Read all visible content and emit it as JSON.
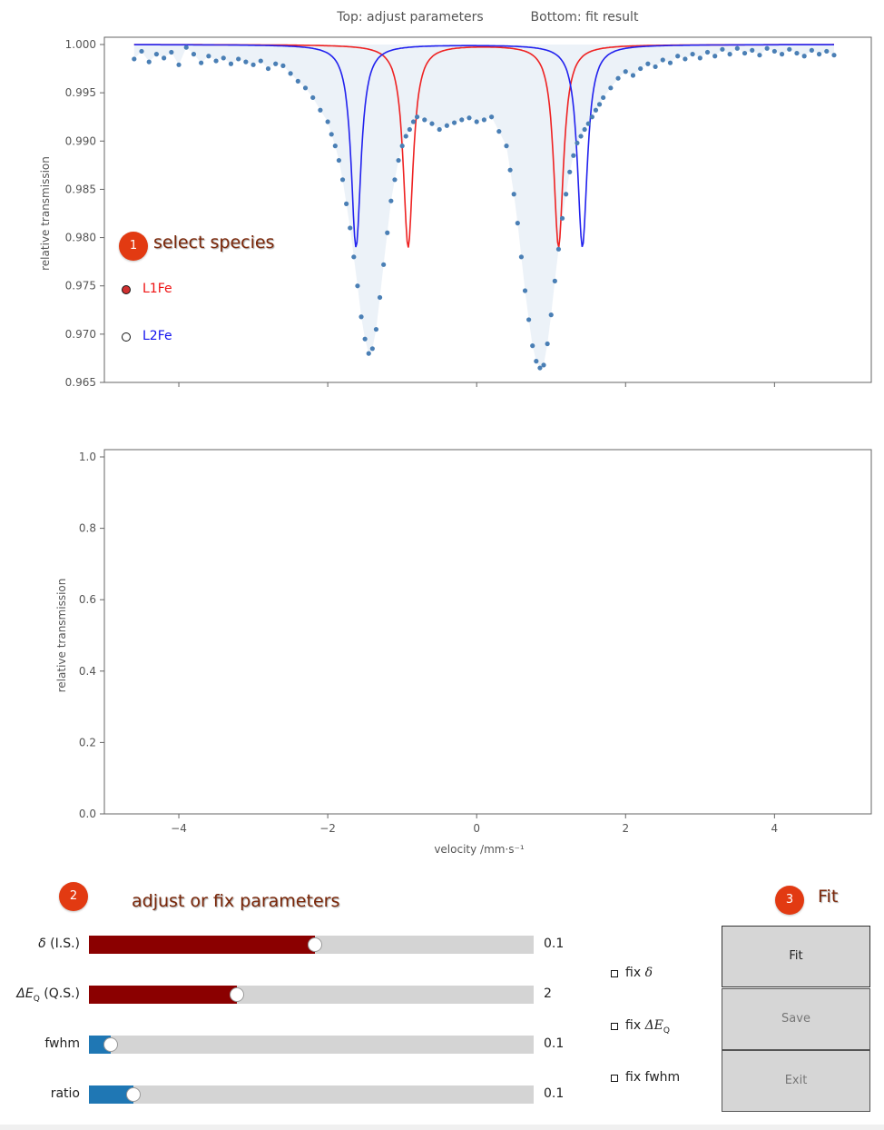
{
  "figure": {
    "top_caption": "Top: adjust parameters",
    "bottom_caption": "Bottom: fit result"
  },
  "steps": [
    {
      "number": "1",
      "title": "select species"
    },
    {
      "number": "2",
      "title": "adjust or fix parameters"
    },
    {
      "number": "3",
      "title": "Fit"
    }
  ],
  "species": [
    {
      "label": "L1Fe",
      "color": "#ee1111",
      "selected": true
    },
    {
      "label": "L2Fe",
      "color": "#1111ee",
      "selected": false
    }
  ],
  "parameters": [
    {
      "label_sym": "δ",
      "label_rest": " (I.S.)",
      "value_text": "0.1",
      "fill_fraction": 0.508,
      "fill_color": "#8b0000"
    },
    {
      "label_sym": "ΔE",
      "label_sub": "Q",
      "label_rest": " (Q.S.)",
      "value_text": "2",
      "fill_fraction": 0.333,
      "fill_color": "#8b0000"
    },
    {
      "label_sym": "",
      "label_rest": "fwhm",
      "value_text": "0.1",
      "fill_fraction": 0.049,
      "fill_color": "#1f77b4"
    },
    {
      "label_sym": "",
      "label_rest": "ratio",
      "value_text": "0.1",
      "fill_fraction": 0.1,
      "fill_color": "#1f77b4"
    }
  ],
  "fix_options": [
    {
      "prefix": "fix ",
      "sym": "δ",
      "sub": ""
    },
    {
      "prefix": "fix ",
      "sym": "ΔE",
      "sub": "Q"
    },
    {
      "prefix": "fix fwhm",
      "sym": "",
      "sub": ""
    }
  ],
  "buttons": {
    "fit": "Fit",
    "save": "Save",
    "exit": "Exit"
  },
  "chart_data": [
    {
      "type": "scatter",
      "title": "",
      "xlabel": "",
      "ylabel": "relative transmission",
      "xlim": [
        -5.0,
        5.3
      ],
      "ylim": [
        0.965,
        1.0
      ],
      "yticks": [
        "0.965",
        "0.970",
        "0.975",
        "0.980",
        "0.985",
        "0.990",
        "0.995",
        "1.000"
      ],
      "series": [
        {
          "name": "",
          "role": "measured",
          "color": "#4a7fb5",
          "x": [
            -4.6,
            -4.5,
            -4.4,
            -4.3,
            -4.2,
            -4.1,
            -4.0,
            -3.9,
            -3.8,
            -3.7,
            -3.6,
            -3.5,
            -3.4,
            -3.3,
            -3.2,
            -3.1,
            -3.0,
            -2.9,
            -2.8,
            -2.7,
            -2.6,
            -2.5,
            -2.4,
            -2.3,
            -2.2,
            -2.1,
            -2.0,
            -1.95,
            -1.9,
            -1.85,
            -1.8,
            -1.75,
            -1.7,
            -1.65,
            -1.6,
            -1.55,
            -1.5,
            -1.45,
            -1.4,
            -1.35,
            -1.3,
            -1.25,
            -1.2,
            -1.15,
            -1.1,
            -1.05,
            -1.0,
            -0.95,
            -0.9,
            -0.85,
            -0.8,
            -0.7,
            -0.6,
            -0.5,
            -0.4,
            -0.3,
            -0.2,
            -0.1,
            0.0,
            0.1,
            0.2,
            0.3,
            0.4,
            0.45,
            0.5,
            0.55,
            0.6,
            0.65,
            0.7,
            0.75,
            0.8,
            0.85,
            0.9,
            0.95,
            1.0,
            1.05,
            1.1,
            1.15,
            1.2,
            1.25,
            1.3,
            1.35,
            1.4,
            1.45,
            1.5,
            1.55,
            1.6,
            1.65,
            1.7,
            1.8,
            1.9,
            2.0,
            2.1,
            2.2,
            2.3,
            2.4,
            2.5,
            2.6,
            2.7,
            2.8,
            2.9,
            3.0,
            3.1,
            3.2,
            3.3,
            3.4,
            3.5,
            3.6,
            3.7,
            3.8,
            3.9,
            4.0,
            4.1,
            4.2,
            4.3,
            4.4,
            4.5,
            4.6,
            4.7,
            4.8
          ],
          "y": [
            0.9985,
            0.9993,
            0.9982,
            0.999,
            0.9986,
            0.9992,
            0.9979,
            0.9997,
            0.999,
            0.9981,
            0.9988,
            0.9983,
            0.9986,
            0.998,
            0.9985,
            0.9982,
            0.9979,
            0.9983,
            0.9975,
            0.998,
            0.9978,
            0.997,
            0.9962,
            0.9955,
            0.9945,
            0.9932,
            0.992,
            0.9907,
            0.9895,
            0.988,
            0.986,
            0.9835,
            0.981,
            0.978,
            0.975,
            0.9718,
            0.9695,
            0.968,
            0.9685,
            0.9705,
            0.9738,
            0.9772,
            0.9805,
            0.9838,
            0.986,
            0.988,
            0.9895,
            0.9905,
            0.9912,
            0.992,
            0.9925,
            0.9922,
            0.9918,
            0.9912,
            0.9916,
            0.9919,
            0.9922,
            0.9924,
            0.992,
            0.9922,
            0.9925,
            0.991,
            0.9895,
            0.987,
            0.9845,
            0.9815,
            0.978,
            0.9745,
            0.9715,
            0.9688,
            0.9672,
            0.9665,
            0.9668,
            0.969,
            0.972,
            0.9755,
            0.9788,
            0.982,
            0.9845,
            0.9868,
            0.9885,
            0.9898,
            0.9905,
            0.9912,
            0.9918,
            0.9925,
            0.9932,
            0.9938,
            0.9945,
            0.9955,
            0.9965,
            0.9972,
            0.9968,
            0.9975,
            0.998,
            0.9977,
            0.9984,
            0.9981,
            0.9988,
            0.9985,
            0.999,
            0.9986,
            0.9992,
            0.9988,
            0.9995,
            0.999,
            0.9996,
            0.9991,
            0.9994,
            0.9989,
            0.9996,
            0.9993,
            0.999,
            0.9995,
            0.9991,
            0.9988,
            0.9994,
            0.999,
            0.9993,
            0.9989
          ]
        },
        {
          "name": "L1Fe",
          "role": "component",
          "color": "#ee2222",
          "x0": [
            -0.92,
            1.1
          ],
          "depth": 0.021,
          "width": 0.08
        },
        {
          "name": "L2Fe",
          "role": "component",
          "color": "#2222ee",
          "x0": [
            -1.62,
            1.42
          ],
          "depth": 0.021,
          "width": 0.08
        }
      ]
    },
    {
      "type": "scatter",
      "title": "",
      "xlabel": "velocity /mm·s⁻¹",
      "ylabel": "relative transmission",
      "xlim": [
        -5.0,
        5.3
      ],
      "ylim": [
        0.0,
        1.0
      ],
      "xticks": [
        "−4",
        "−2",
        "0",
        "2",
        "4"
      ],
      "yticks": [
        "0.0",
        "0.2",
        "0.4",
        "0.6",
        "0.8",
        "1.0"
      ],
      "series": []
    }
  ]
}
